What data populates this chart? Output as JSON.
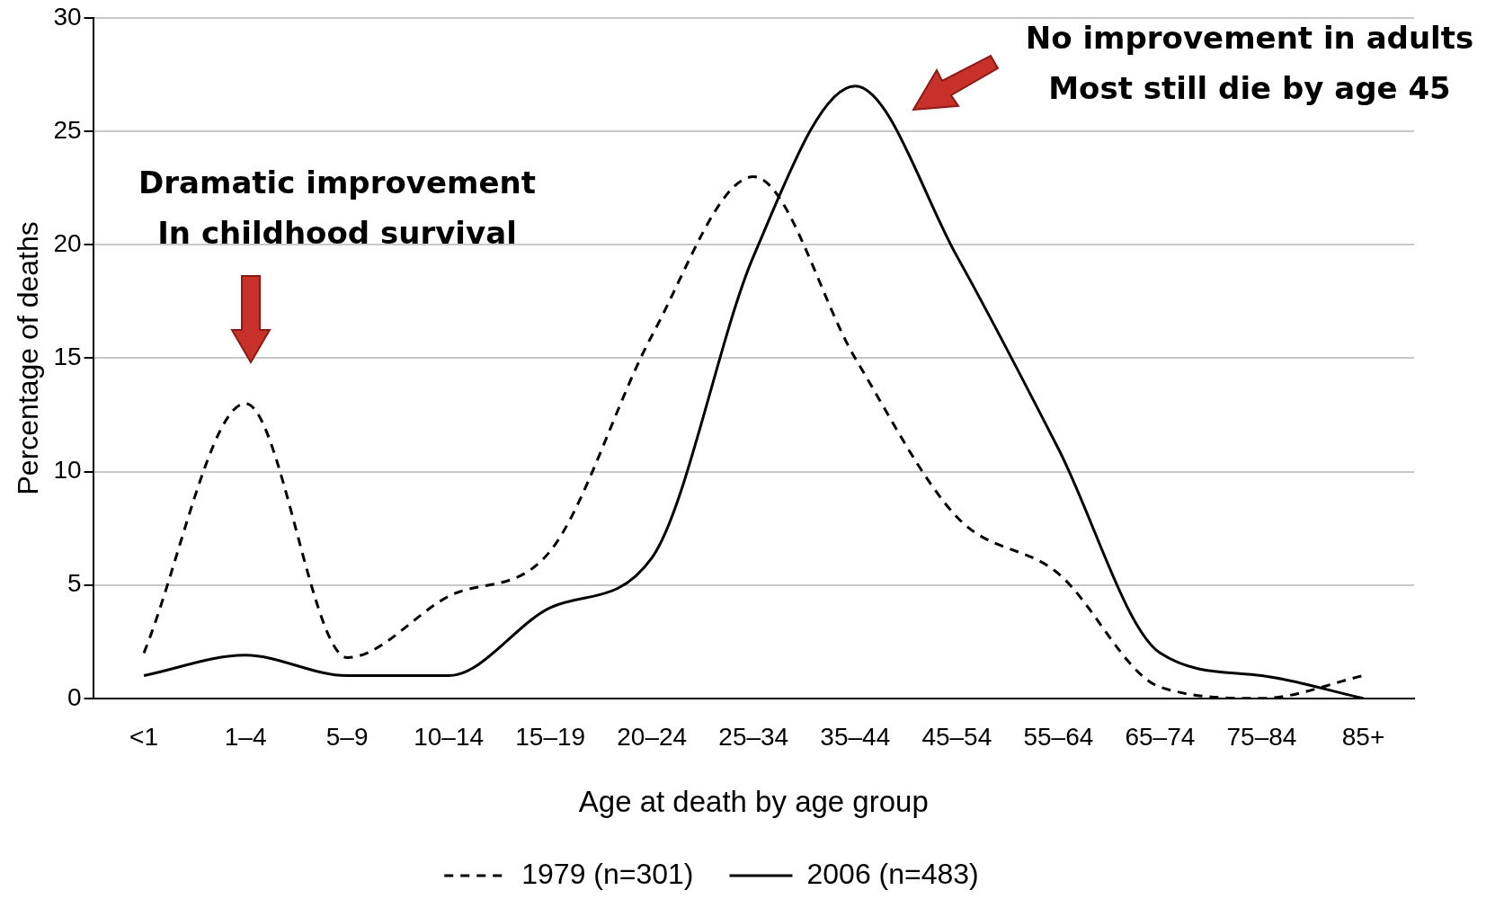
{
  "chart_data": {
    "type": "line",
    "xlabel": "Age at death by age group",
    "ylabel": "Percentage of deaths",
    "categories": [
      "<1",
      "1–4",
      "5–9",
      "10–14",
      "15–19",
      "20–24",
      "25–34",
      "35–44",
      "45–54",
      "55–64",
      "65–74",
      "75–84",
      "85+"
    ],
    "series": [
      {
        "name": "1979 (n=301)",
        "color": "#000000",
        "line_style": "dashed",
        "values": [
          2,
          13,
          1.8,
          4.5,
          6.5,
          16,
          23,
          15,
          8,
          5.5,
          0.5,
          0,
          1
        ]
      },
      {
        "name": "2006 (n=483)",
        "color": "#000000",
        "line_style": "solid",
        "values": [
          1,
          1.9,
          1,
          1,
          4,
          6.2,
          19.5,
          27,
          19.5,
          11,
          2,
          1,
          0
        ]
      }
    ],
    "ylim": [
      0,
      30
    ],
    "yticks": [
      0,
      5,
      10,
      15,
      20,
      25,
      30
    ],
    "grid": "y",
    "legend": "bottom",
    "marker": "none",
    "annotations": [
      "Dramatic improvement\nIn childhood survival",
      "No improvement in adults\nMost still die by age 45"
    ]
  }
}
